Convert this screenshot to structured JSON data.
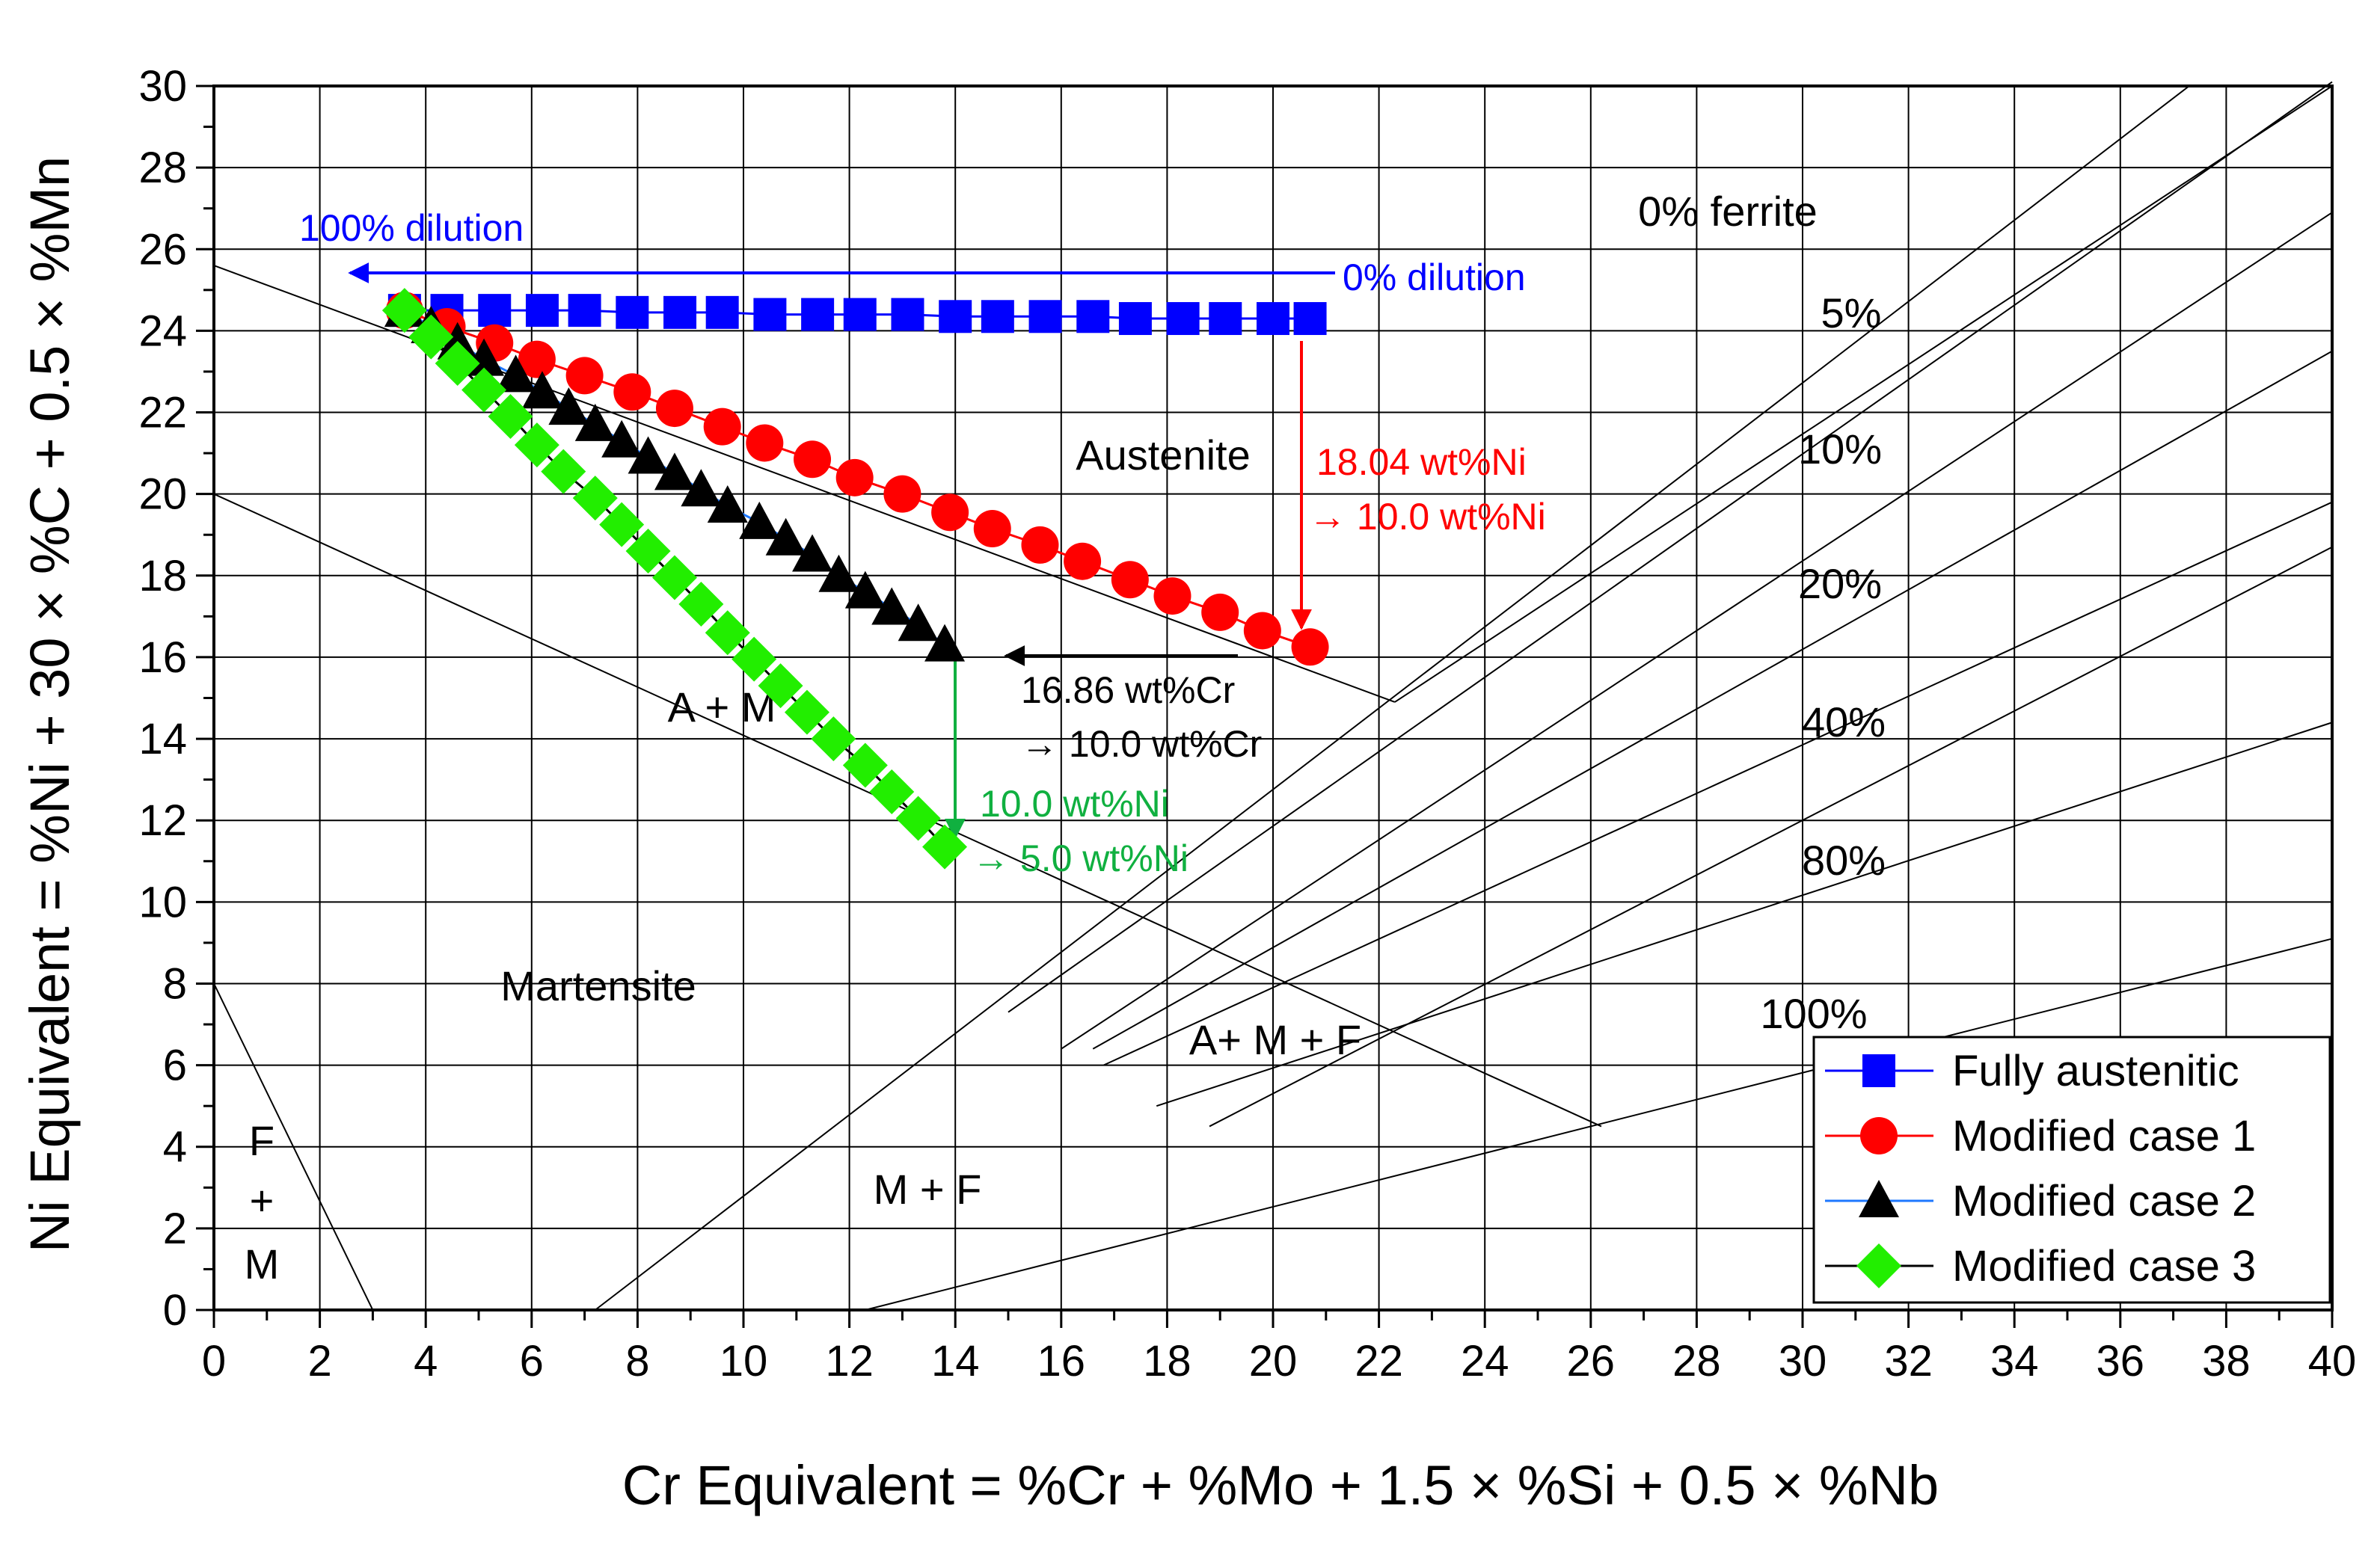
{
  "chart_data": {
    "type": "scatter",
    "title": "",
    "xlabel": "Cr Equivalent = %Cr + %Mo + 1.5 × %Si + 0.5 × %Nb",
    "ylabel": "Ni Equivalent = %Ni + 30 × %C + 0.5 × %Mn",
    "xlim": [
      0,
      40
    ],
    "ylim": [
      0,
      30
    ],
    "xticks": [
      "0",
      "2",
      "4",
      "6",
      "8",
      "10",
      "12",
      "14",
      "16",
      "18",
      "20",
      "22",
      "24",
      "26",
      "28",
      "30",
      "32",
      "34",
      "36",
      "38",
      "40"
    ],
    "yticks": [
      "0",
      "2",
      "4",
      "6",
      "8",
      "10",
      "12",
      "14",
      "16",
      "18",
      "20",
      "22",
      "24",
      "26",
      "28",
      "30"
    ],
    "grid": true,
    "legend_position": "bottom-right",
    "series": [
      {
        "name": "Fully austenitic",
        "color": "#0000ff",
        "marker": "square",
        "x": [
          3.6,
          4.4,
          5.3,
          6.2,
          7.0,
          7.9,
          8.8,
          9.6,
          10.5,
          11.4,
          12.2,
          13.1,
          14.0,
          14.8,
          15.7,
          16.6,
          17.4,
          18.3,
          19.1,
          20.0,
          20.7
        ],
        "y": [
          24.5,
          24.5,
          24.5,
          24.5,
          24.5,
          24.45,
          24.45,
          24.45,
          24.4,
          24.4,
          24.4,
          24.4,
          24.35,
          24.35,
          24.35,
          24.35,
          24.3,
          24.3,
          24.3,
          24.3,
          24.3
        ]
      },
      {
        "name": "Modified case 1",
        "color": "#ff0000",
        "marker": "circle",
        "x": [
          3.6,
          4.4,
          5.3,
          6.1,
          7.0,
          7.9,
          8.7,
          9.6,
          10.4,
          11.3,
          12.1,
          13.0,
          13.9,
          14.7,
          15.6,
          16.4,
          17.3,
          18.1,
          19.0,
          19.8,
          20.7
        ],
        "y": [
          24.5,
          24.1,
          23.7,
          23.3,
          22.9,
          22.5,
          22.1,
          21.65,
          21.25,
          20.85,
          20.4,
          20.0,
          19.55,
          19.15,
          18.75,
          18.35,
          17.9,
          17.5,
          17.1,
          16.65,
          16.25
        ]
      },
      {
        "name": "Modified case 2",
        "color": "#000000",
        "line_color": "#1e78ff",
        "marker": "triangle",
        "x": [
          3.6,
          4.1,
          4.6,
          5.1,
          5.7,
          6.2,
          6.7,
          7.2,
          7.7,
          8.2,
          8.7,
          9.2,
          9.7,
          10.3,
          10.8,
          11.3,
          11.8,
          12.3,
          12.8,
          13.3,
          13.8
        ],
        "y": [
          24.5,
          24.1,
          23.7,
          23.3,
          22.9,
          22.5,
          22.1,
          21.7,
          21.3,
          20.9,
          20.5,
          20.1,
          19.7,
          19.3,
          18.9,
          18.5,
          18.0,
          17.6,
          17.2,
          16.8,
          16.3
        ]
      },
      {
        "name": "Modified case 3",
        "color": "#22ee00",
        "line_color": "#000000",
        "marker": "diamond",
        "x": [
          3.6,
          4.1,
          4.6,
          5.1,
          5.6,
          6.1,
          6.6,
          7.2,
          7.7,
          8.2,
          8.7,
          9.2,
          9.7,
          10.2,
          10.7,
          11.2,
          11.7,
          12.3,
          12.8,
          13.3,
          13.8
        ],
        "y": [
          24.5,
          23.85,
          23.2,
          22.55,
          21.9,
          21.2,
          20.55,
          19.9,
          19.25,
          18.6,
          17.95,
          17.3,
          16.6,
          15.95,
          15.3,
          14.65,
          14.0,
          13.35,
          12.7,
          12.05,
          11.35
        ]
      }
    ],
    "boundaries": [
      {
        "x": [
          0,
          22.3
        ],
        "y": [
          25.6,
          14.9
        ]
      },
      {
        "x": [
          0,
          26.2
        ],
        "y": [
          20.0,
          4.5
        ]
      },
      {
        "x": [
          0,
          3.0
        ],
        "y": [
          8.0,
          0
        ]
      },
      {
        "x": [
          7.2,
          37.3
        ],
        "y": [
          0,
          30
        ]
      },
      {
        "x": [
          16.0,
          40
        ],
        "y": [
          6.4,
          26.9
        ]
      },
      {
        "x": [
          16.6,
          40
        ],
        "y": [
          6.4,
          23.5
        ]
      },
      {
        "x": [
          16.8,
          40
        ],
        "y": [
          6.0,
          19.8
        ]
      },
      {
        "x": [
          17.8,
          40
        ],
        "y": [
          5.0,
          14.4
        ]
      },
      {
        "x": [
          12.3,
          40
        ],
        "y": [
          0,
          9.1
        ]
      },
      {
        "x": [
          18.8,
          40
        ],
        "y": [
          4.5,
          18.7
        ]
      },
      {
        "x": [
          22.3,
          40
        ],
        "y": [
          14.9,
          30
        ]
      },
      {
        "x": [
          15.0,
          40
        ],
        "y": [
          7.3,
          30.1
        ]
      }
    ],
    "annotations": {
      "dilution_100": "100% dilution",
      "dilution_0": "0% dilution",
      "austenite": "Austenite",
      "a_plus_m": "A + M",
      "martensite": "Martensite",
      "amf": "A+ M + F",
      "mf": "M + F",
      "f_letter": "F",
      "plus_sign": "+",
      "m_letter": "M",
      "ferrite_0": "0% ferrite",
      "ferrite_5": "5%",
      "ferrite_10": "10%",
      "ferrite_20": "20%",
      "ferrite_40": "40%",
      "ferrite_80": "80%",
      "ferrite_100": "100%",
      "ni_18": "18.04 wt%Ni",
      "ni_10": "→ 10.0 wt%Ni",
      "cr_16": "16.86 wt%Cr",
      "cr_10": "→ 10.0 wt%Cr",
      "ni_10b": "10.0 wt%Ni",
      "ni_5": "→ 5.0 wt%Ni"
    },
    "annotation_colors": {
      "blue": "#0000ff",
      "red": "#ff0000",
      "black": "#000000",
      "green": "#10b040"
    }
  }
}
